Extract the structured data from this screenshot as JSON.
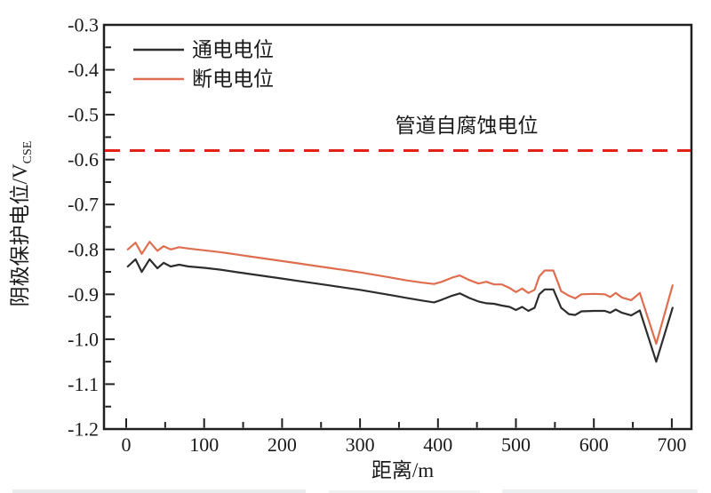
{
  "figure": {
    "background": "#ffffff",
    "axis_color": "#1f1f1f",
    "text_color": "#1a1a1a"
  },
  "chart_data": {
    "type": "line",
    "title": "",
    "xlabel": "距离/m",
    "ylabel_main": "阴极保护电位/V",
    "ylabel_sub": "CSE",
    "xlim": [
      -28,
      725
    ],
    "ylim": [
      -1.2,
      -0.3
    ],
    "x_ticks": [
      0,
      100,
      200,
      300,
      400,
      500,
      600,
      700
    ],
    "x_minor_step": 50,
    "y_ticks": [
      -0.3,
      -0.4,
      -0.5,
      -0.6,
      -0.7,
      -0.8,
      -0.9,
      -1.0,
      -1.1,
      -1.2
    ],
    "y_minor_step": 0.05,
    "grid": false,
    "legend_position": "top-left-inside",
    "x": [
      2,
      12,
      20,
      30,
      40,
      48,
      57,
      68,
      80,
      100,
      120,
      140,
      160,
      180,
      200,
      220,
      240,
      260,
      280,
      300,
      320,
      340,
      360,
      380,
      395,
      405,
      418,
      428,
      440,
      452,
      462,
      472,
      482,
      492,
      500,
      508,
      516,
      524,
      530,
      537,
      548,
      558,
      568,
      576,
      584,
      600,
      614,
      621,
      628,
      636,
      648,
      659,
      680,
      701
    ],
    "series": [
      {
        "name": "通电电位",
        "color": "#2d2d2d",
        "values": [
          -0.838,
          -0.822,
          -0.85,
          -0.822,
          -0.842,
          -0.83,
          -0.838,
          -0.834,
          -0.838,
          -0.841,
          -0.845,
          -0.85,
          -0.855,
          -0.86,
          -0.865,
          -0.87,
          -0.875,
          -0.88,
          -0.885,
          -0.89,
          -0.896,
          -0.902,
          -0.908,
          -0.914,
          -0.918,
          -0.912,
          -0.903,
          -0.898,
          -0.908,
          -0.916,
          -0.92,
          -0.921,
          -0.925,
          -0.928,
          -0.935,
          -0.928,
          -0.937,
          -0.93,
          -0.9,
          -0.889,
          -0.889,
          -0.93,
          -0.944,
          -0.946,
          -0.938,
          -0.937,
          -0.937,
          -0.941,
          -0.934,
          -0.941,
          -0.947,
          -0.936,
          -1.05,
          -0.93
        ]
      },
      {
        "name": "断电电位",
        "color": "#de6e4f",
        "values": [
          -0.8,
          -0.785,
          -0.81,
          -0.783,
          -0.803,
          -0.793,
          -0.8,
          -0.795,
          -0.798,
          -0.802,
          -0.806,
          -0.811,
          -0.816,
          -0.821,
          -0.826,
          -0.831,
          -0.836,
          -0.841,
          -0.846,
          -0.851,
          -0.857,
          -0.863,
          -0.869,
          -0.874,
          -0.877,
          -0.872,
          -0.863,
          -0.858,
          -0.868,
          -0.876,
          -0.872,
          -0.878,
          -0.878,
          -0.886,
          -0.895,
          -0.887,
          -0.897,
          -0.89,
          -0.86,
          -0.847,
          -0.847,
          -0.893,
          -0.903,
          -0.909,
          -0.9,
          -0.899,
          -0.9,
          -0.906,
          -0.897,
          -0.907,
          -0.913,
          -0.897,
          -1.01,
          -0.88
        ]
      }
    ],
    "reference_line": {
      "label": "管道自腐蚀电位",
      "value": -0.58,
      "color": "#e32119",
      "style": "dashed"
    }
  }
}
